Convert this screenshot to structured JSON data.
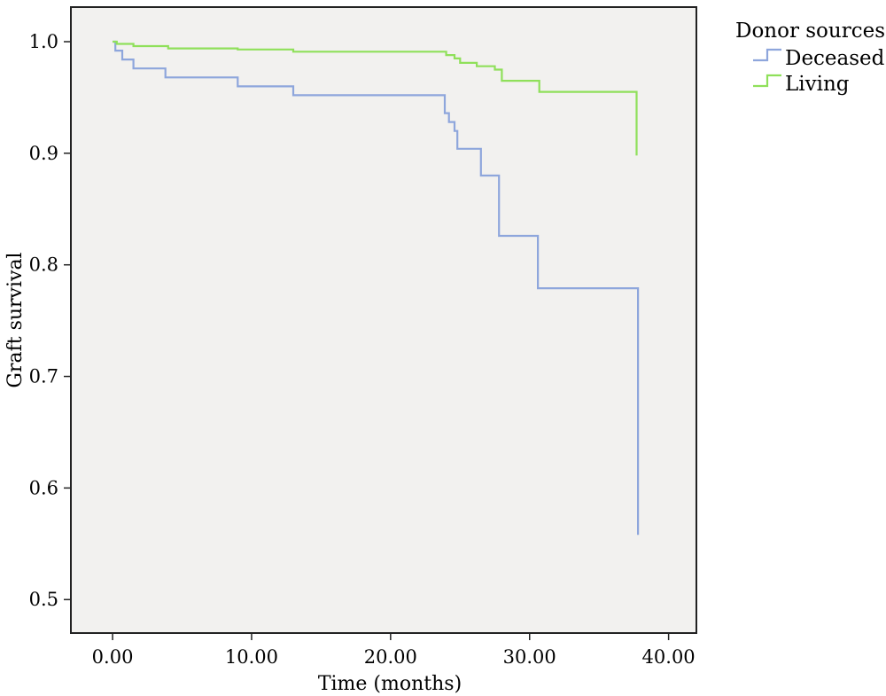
{
  "chart_data": {
    "type": "line",
    "step": true,
    "xlabel": "Time (months)",
    "ylabel": "Graft survival",
    "xlim": [
      -3,
      42
    ],
    "ylim": [
      0.47,
      1.031
    ],
    "xticks": [
      0,
      10,
      20,
      30,
      40
    ],
    "xtick_labels": [
      "0.00",
      "10.00",
      "20.00",
      "30.00",
      "40.00"
    ],
    "yticks": [
      0.5,
      0.6,
      0.7,
      0.8,
      0.9,
      1.0
    ],
    "ytick_labels": [
      "0.5",
      "0.6",
      "0.7",
      "0.8",
      "0.9",
      "1.0"
    ],
    "grid": false,
    "background": "#f2f1ef",
    "legend": {
      "title": "Donor sources",
      "placement": "outside-top-right",
      "entries": [
        "Deceased",
        "Living"
      ]
    },
    "series": [
      {
        "name": "Deceased",
        "color": "#8ea6dc",
        "x": [
          0,
          0.2,
          0.7,
          1.5,
          3.8,
          9.0,
          13.0,
          23.9,
          24.2,
          24.6,
          24.8,
          26.5,
          27.8,
          30.6,
          37.8,
          37.8
        ],
        "y": [
          1.0,
          0.992,
          0.984,
          0.976,
          0.968,
          0.96,
          0.952,
          0.936,
          0.928,
          0.92,
          0.904,
          0.88,
          0.826,
          0.779,
          0.779,
          0.558
        ]
      },
      {
        "name": "Living",
        "color": "#8fe05a",
        "x": [
          0,
          0.3,
          1.5,
          4.0,
          9.0,
          13.0,
          24.0,
          24.6,
          25.0,
          26.2,
          27.5,
          28.0,
          30.7,
          37.7,
          37.7
        ],
        "y": [
          1.0,
          0.998,
          0.996,
          0.994,
          0.993,
          0.991,
          0.988,
          0.985,
          0.981,
          0.978,
          0.975,
          0.965,
          0.955,
          0.955,
          0.898
        ]
      }
    ]
  }
}
